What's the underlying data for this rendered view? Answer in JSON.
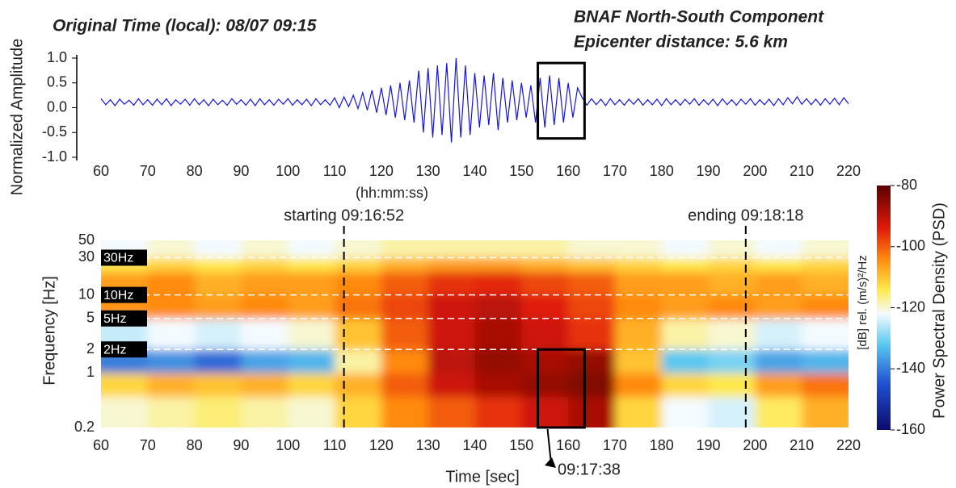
{
  "chart_data": [
    {
      "type": "line",
      "title": "Original Time (local): 08/07 09:15",
      "subtitle": [
        "BNAF  North-South Component",
        "Epicenter distance: 5.6 km"
      ],
      "x_label": "(hh:mm:ss)",
      "y_label": "Normalized Amplitude",
      "color": "#1414e6",
      "xlim": [
        60,
        220
      ],
      "xticks": [
        60,
        70,
        80,
        90,
        100,
        110,
        120,
        130,
        140,
        150,
        160,
        170,
        180,
        190,
        200,
        210,
        220
      ],
      "ylim": [
        -1,
        1
      ],
      "yticks": [
        {
          "value": 1,
          "label": "1.0"
        },
        0.5,
        {
          "value": 0,
          "label": "0.0"
        },
        -0.5,
        {
          "value": -1,
          "label": "-1.0"
        }
      ],
      "x": [
        60,
        61,
        62,
        63,
        64,
        65,
        66,
        67,
        68,
        69,
        70,
        71,
        72,
        73,
        74,
        75,
        76,
        77,
        78,
        79,
        80,
        81,
        82,
        83,
        84,
        85,
        86,
        87,
        88,
        89,
        90,
        91,
        92,
        93,
        94,
        95,
        96,
        97,
        98,
        99,
        100,
        101,
        102,
        103,
        104,
        105,
        106,
        107,
        108,
        109,
        110,
        111,
        112,
        113,
        114,
        115,
        116,
        117,
        118,
        119,
        120,
        121,
        122,
        123,
        124,
        125,
        126,
        127,
        128,
        129,
        130,
        131,
        132,
        133,
        134,
        135,
        136,
        137,
        138,
        139,
        140,
        141,
        142,
        143,
        144,
        145,
        146,
        147,
        148,
        149,
        150,
        151,
        152,
        153,
        154,
        155,
        156,
        157,
        158,
        159,
        160,
        161,
        162,
        163,
        164,
        165,
        166,
        167,
        168,
        169,
        170,
        171,
        172,
        173,
        174,
        175,
        176,
        177,
        178,
        179,
        180,
        181,
        182,
        183,
        184,
        185,
        186,
        187,
        188,
        189,
        190,
        191,
        192,
        193,
        194,
        195,
        196,
        197,
        198,
        199,
        200,
        201,
        202,
        203,
        204,
        205,
        206,
        207,
        208,
        209,
        210,
        211,
        212,
        213,
        214,
        215,
        216,
        217,
        218,
        219,
        220
      ],
      "values": [
        0.18,
        0.06,
        0.16,
        0.04,
        0.17,
        0.07,
        0.15,
        0.05,
        0.18,
        0.06,
        0.16,
        0.05,
        0.17,
        0.06,
        0.18,
        0.04,
        0.16,
        0.07,
        0.17,
        0.05,
        0.18,
        0.06,
        0.16,
        0.04,
        0.17,
        0.06,
        0.15,
        0.05,
        0.18,
        0.07,
        0.16,
        0.05,
        0.17,
        0.04,
        0.18,
        0.06,
        0.16,
        0.05,
        0.17,
        0.07,
        0.18,
        0.05,
        0.16,
        0.06,
        0.17,
        0.04,
        0.18,
        0.06,
        0.16,
        0.05,
        0.2,
        0.0,
        0.22,
        0.02,
        0.25,
        -0.02,
        0.3,
        -0.05,
        0.35,
        -0.1,
        0.4,
        -0.15,
        0.45,
        -0.2,
        0.5,
        -0.25,
        0.55,
        -0.3,
        0.75,
        -0.5,
        0.8,
        -0.6,
        0.85,
        -0.55,
        0.9,
        -0.7,
        1.0,
        -0.6,
        0.85,
        -0.55,
        0.7,
        -0.4,
        0.65,
        -0.35,
        0.7,
        -0.45,
        0.6,
        -0.3,
        0.55,
        -0.25,
        0.5,
        -0.2,
        0.45,
        -0.3,
        0.6,
        -0.4,
        0.65,
        -0.35,
        0.6,
        -0.3,
        0.5,
        -0.2,
        0.4,
        0.2,
        0.05,
        0.18,
        0.06,
        0.17,
        0.04,
        0.18,
        0.06,
        0.16,
        0.05,
        0.17,
        0.07,
        0.18,
        0.05,
        0.16,
        0.06,
        0.17,
        0.04,
        0.18,
        0.06,
        0.16,
        0.05,
        0.17,
        0.07,
        0.18,
        0.05,
        0.16,
        0.06,
        0.17,
        0.04,
        0.18,
        0.06,
        0.16,
        0.05,
        0.17,
        0.07,
        0.18,
        0.05,
        0.16,
        0.06,
        0.17,
        0.04,
        0.18,
        0.06,
        0.2,
        0.08,
        0.22,
        0.07,
        0.18,
        0.06,
        0.17,
        0.05,
        0.18,
        0.07,
        0.19,
        0.06,
        0.2,
        0.08
      ],
      "highlight": {
        "xlim": [
          153.5,
          163.5
        ],
        "ylim": [
          -0.62,
          0.9
        ]
      }
    },
    {
      "type": "heatmap",
      "x_label": "Time [sec]",
      "y_label": "Frequency [Hz]",
      "colorbar_label": "Power Spectral Density (PSD)",
      "colorbar_unit": "[dB] rel. (m/s)²/Hz",
      "xlim": [
        60,
        220
      ],
      "xticks": [
        60,
        70,
        80,
        90,
        100,
        110,
        120,
        130,
        140,
        150,
        160,
        170,
        180,
        190,
        200,
        210,
        220
      ],
      "ylim": [
        0.2,
        50
      ],
      "log_y": true,
      "yticks": [
        0.2,
        1,
        2,
        5,
        10,
        30,
        50
      ],
      "zlim": [
        -160,
        -80
      ],
      "zticks": [
        -80,
        -100,
        -120,
        -140,
        -160
      ],
      "colorscale": [
        {
          "value": -160,
          "color": "#0b0b6b"
        },
        {
          "value": -145,
          "color": "#1f4fd0"
        },
        {
          "value": -132,
          "color": "#5ac8f0"
        },
        {
          "value": -122,
          "color": "#f4fbff"
        },
        {
          "value": -114,
          "color": "#ffe94a"
        },
        {
          "value": -104,
          "color": "#ff8a10"
        },
        {
          "value": -94,
          "color": "#e01a0a"
        },
        {
          "value": -80,
          "color": "#5a0000"
        }
      ],
      "x_bins": [
        60,
        70,
        80,
        90,
        100,
        110,
        120,
        130,
        140,
        150,
        160,
        170,
        180,
        190,
        200,
        210,
        220
      ],
      "y_bins": [
        0.2,
        0.5,
        1,
        2,
        5,
        10,
        20,
        30,
        50
      ],
      "values": [
        [
          -120,
          -118,
          -116,
          -118,
          -120,
          -112,
          -104,
          -100,
          -96,
          -92,
          -88,
          -112,
          -122,
          -124,
          -115,
          -108
        ],
        [
          -112,
          -108,
          -110,
          -108,
          -112,
          -108,
          -100,
          -92,
          -88,
          -86,
          -84,
          -104,
          -112,
          -114,
          -106,
          -102
        ],
        [
          -140,
          -138,
          -142,
          -136,
          -134,
          -118,
          -104,
          -90,
          -86,
          -88,
          -86,
          -110,
          -132,
          -130,
          -136,
          -134
        ],
        [
          -125,
          -122,
          -124,
          -122,
          -120,
          -110,
          -100,
          -92,
          -88,
          -92,
          -96,
          -108,
          -118,
          -120,
          -124,
          -122
        ],
        [
          -105,
          -104,
          -106,
          -104,
          -106,
          -102,
          -98,
          -92,
          -90,
          -94,
          -98,
          -104,
          -106,
          -104,
          -106,
          -104
        ],
        [
          -106,
          -104,
          -108,
          -106,
          -106,
          -104,
          -100,
          -96,
          -95,
          -98,
          -100,
          -106,
          -106,
          -108,
          -106,
          -108
        ],
        [
          -114,
          -112,
          -114,
          -112,
          -114,
          -112,
          -108,
          -106,
          -106,
          -108,
          -110,
          -112,
          -114,
          -112,
          -114,
          -112
        ],
        [
          -122,
          -120,
          -122,
          -120,
          -122,
          -120,
          -118,
          -118,
          -118,
          -118,
          -120,
          -120,
          -122,
          -120,
          -122,
          -120
        ]
      ],
      "markers": [
        {
          "x": 112,
          "label": "starting 09:16:52"
        },
        {
          "x": 198,
          "label": "ending 09:18:18"
        }
      ],
      "ref_lines": [
        {
          "value": 30,
          "label": "30Hz"
        },
        {
          "value": 10,
          "label": "10Hz"
        },
        {
          "value": 5,
          "label": "5Hz"
        },
        {
          "value": 2,
          "label": "2Hz"
        }
      ],
      "highlight": {
        "xlim": [
          153.5,
          163.5
        ],
        "ylim": [
          0.2,
          2
        ]
      },
      "highlight_label": "09:17:38"
    }
  ]
}
